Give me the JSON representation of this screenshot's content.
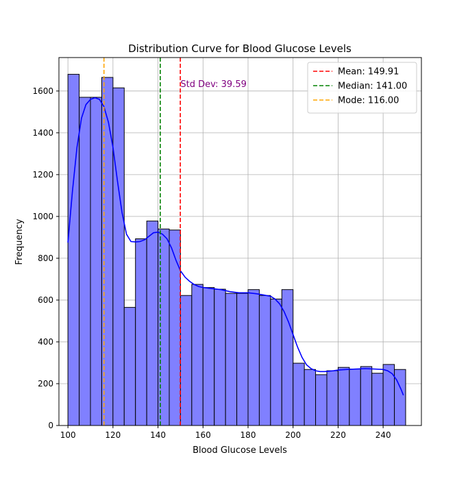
{
  "chart_data": {
    "type": "bar",
    "title": "Distribution Curve for Blood Glucose Levels",
    "xlabel": "Blood Glucose Levels",
    "ylabel": "Frequency",
    "xlim": [
      96,
      257
    ],
    "ylim": [
      0,
      1760
    ],
    "xticks": [
      100,
      120,
      140,
      160,
      180,
      200,
      220,
      240
    ],
    "yticks": [
      0,
      200,
      400,
      600,
      800,
      1000,
      1200,
      1400,
      1600
    ],
    "grid": true,
    "bin_start": 100,
    "bin_width": 5,
    "bin_counts": [
      1680,
      1570,
      1570,
      1665,
      1615,
      565,
      893,
      978,
      940,
      935,
      622,
      675,
      660,
      652,
      632,
      632,
      650,
      622,
      605,
      650,
      298,
      268,
      243,
      262,
      278,
      270,
      282,
      250,
      292,
      268
    ],
    "kde": {
      "x": [
        100,
        102,
        104,
        106,
        108,
        110,
        112,
        114,
        116,
        118,
        120,
        122,
        124,
        126,
        128,
        130,
        132,
        134,
        136,
        138,
        140,
        142,
        144,
        146,
        148,
        150,
        152,
        154,
        156,
        158,
        160,
        164,
        168,
        172,
        176,
        180,
        184,
        188,
        190,
        192,
        194,
        196,
        198,
        200,
        202,
        204,
        206,
        208,
        210,
        212,
        214,
        216,
        218,
        220,
        224,
        228,
        232,
        236,
        240,
        242,
        244,
        246,
        248,
        249
      ],
      "y": [
        875,
        1120,
        1330,
        1470,
        1535,
        1560,
        1568,
        1560,
        1525,
        1450,
        1330,
        1170,
        1020,
        915,
        880,
        878,
        880,
        888,
        905,
        922,
        925,
        915,
        893,
        850,
        790,
        740,
        710,
        690,
        675,
        665,
        660,
        655,
        650,
        640,
        635,
        635,
        630,
        622,
        618,
        605,
        582,
        545,
        495,
        435,
        375,
        325,
        290,
        272,
        262,
        258,
        258,
        260,
        262,
        265,
        268,
        270,
        272,
        270,
        268,
        262,
        248,
        218,
        172,
        145
      ]
    },
    "vlines": [
      {
        "label": "Mean: 149.91",
        "x": 149.91,
        "color": "#ff0000"
      },
      {
        "label": "Median: 141.00",
        "x": 141.0,
        "color": "#008000"
      },
      {
        "label": "Mode: 116.00",
        "x": 116.0,
        "color": "#ffa500"
      }
    ],
    "annotation": {
      "text": "Std Dev: 39.59",
      "x": 150,
      "y": 1600,
      "color": "#800080"
    },
    "legend_position": "top-right",
    "bar_color": "#8080ff",
    "curve_color": "#0000ff"
  }
}
